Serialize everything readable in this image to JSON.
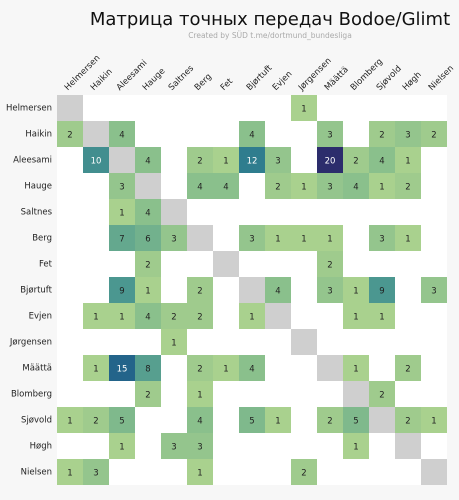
{
  "chart_data": {
    "type": "heatmap",
    "title": "Матрица точных передач Bodoe/Glimt",
    "subtitle": "Created by SÜD t.me/dortmund_bundesliga",
    "categories": [
      "Helmersen",
      "Haikin",
      "Aleesami",
      "Hauge",
      "Saltnes",
      "Berg",
      "Fet",
      "Bjørtuft",
      "Evjen",
      "Jørgensen",
      "Määttä",
      "Blomberg",
      "Sjøvold",
      "Høgh",
      "Nielsen"
    ],
    "colorscale": [
      "#a9d18e",
      "#82bb8c",
      "#4f9a90",
      "#2b7a8e",
      "#1f5a88",
      "#2c2d6c"
    ],
    "diagonal_color": "#cfcfcf",
    "values": [
      [
        null,
        null,
        null,
        null,
        null,
        null,
        null,
        null,
        null,
        1,
        null,
        null,
        null,
        null,
        null
      ],
      [
        2,
        null,
        4,
        null,
        null,
        null,
        null,
        4,
        null,
        null,
        3,
        null,
        2,
        3,
        2
      ],
      [
        null,
        10,
        null,
        4,
        null,
        2,
        1,
        12,
        3,
        null,
        20,
        2,
        4,
        1,
        null
      ],
      [
        null,
        null,
        3,
        null,
        null,
        4,
        4,
        null,
        2,
        1,
        3,
        4,
        1,
        2,
        null
      ],
      [
        null,
        null,
        1,
        4,
        null,
        null,
        null,
        null,
        null,
        null,
        null,
        null,
        null,
        null,
        null
      ],
      [
        null,
        null,
        7,
        6,
        3,
        null,
        null,
        3,
        1,
        1,
        1,
        null,
        3,
        1,
        null
      ],
      [
        null,
        null,
        null,
        2,
        null,
        null,
        null,
        null,
        null,
        null,
        2,
        null,
        null,
        null,
        null
      ],
      [
        null,
        null,
        9,
        1,
        null,
        2,
        null,
        null,
        4,
        null,
        3,
        1,
        9,
        null,
        3
      ],
      [
        null,
        1,
        1,
        4,
        2,
        2,
        null,
        1,
        null,
        null,
        null,
        1,
        1,
        null,
        null
      ],
      [
        null,
        null,
        null,
        null,
        1,
        null,
        null,
        null,
        null,
        null,
        null,
        null,
        null,
        null,
        null
      ],
      [
        null,
        1,
        15,
        8,
        null,
        2,
        1,
        4,
        null,
        null,
        null,
        1,
        null,
        2,
        null
      ],
      [
        null,
        null,
        null,
        2,
        null,
        1,
        null,
        null,
        null,
        null,
        null,
        null,
        2,
        null,
        null
      ],
      [
        1,
        2,
        5,
        null,
        null,
        4,
        null,
        5,
        1,
        null,
        2,
        5,
        null,
        2,
        1
      ],
      [
        null,
        null,
        1,
        null,
        3,
        3,
        null,
        null,
        null,
        null,
        null,
        1,
        null,
        null,
        null
      ],
      [
        1,
        3,
        null,
        null,
        null,
        1,
        null,
        null,
        null,
        2,
        null,
        null,
        null,
        null,
        null
      ]
    ]
  }
}
